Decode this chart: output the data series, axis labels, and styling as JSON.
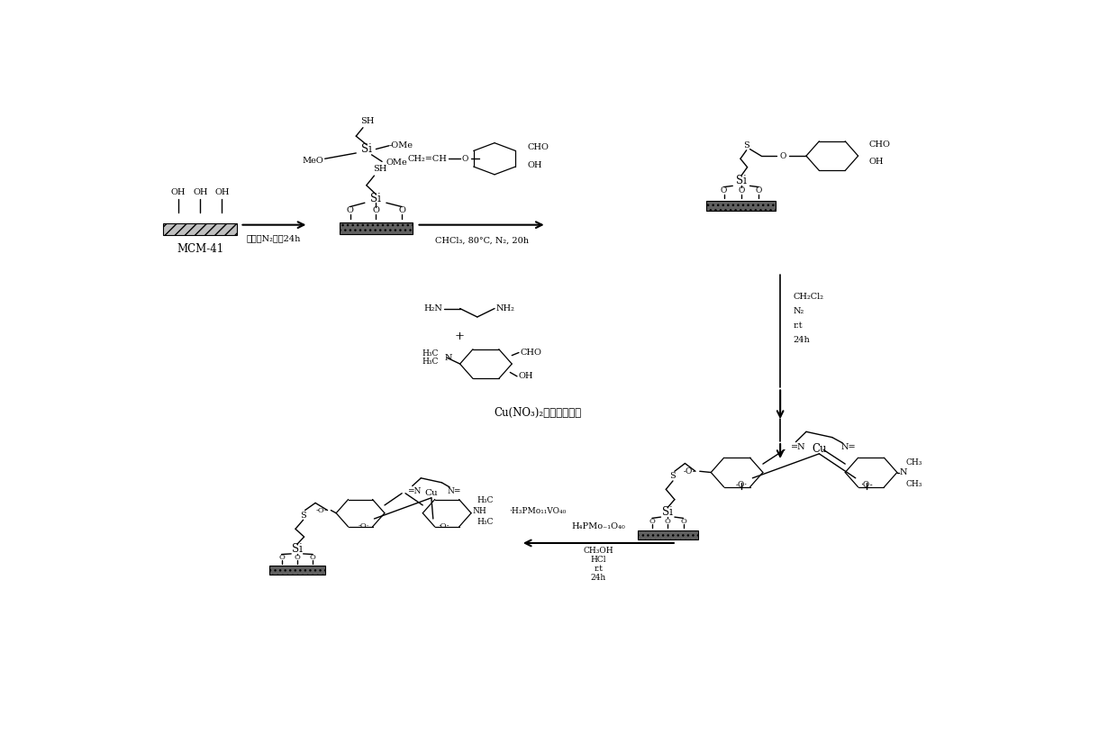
{
  "bg_color": "#ffffff",
  "line_color": "#000000",
  "fig_width": 12.4,
  "fig_height": 8.15,
  "dpi": 100,
  "fonts": {
    "base": 8.5,
    "small": 7.0,
    "large": 9.5,
    "label": 8.0
  },
  "texts": {
    "mcm41": "MCM-41",
    "step1": "甲苯，N₂回兢24h",
    "step2": "CHCl₃, 80°C, N₂, 20h",
    "step3_ch2cl2": "CH₂Cl₂",
    "step3_n2": "N₂",
    "step3_rt": "r.t",
    "step3_24h": "24h",
    "cu_reagent": "Cu(NO₃)₂无水甲醇溶液",
    "step4_h4pmo": "H₄PMo₋₁O₄₀",
    "step4_ch3oh": "CH₃OH",
    "step4_hcl": "HCl",
    "step4_rt": "r.t",
    "step4_24h": "24h"
  }
}
